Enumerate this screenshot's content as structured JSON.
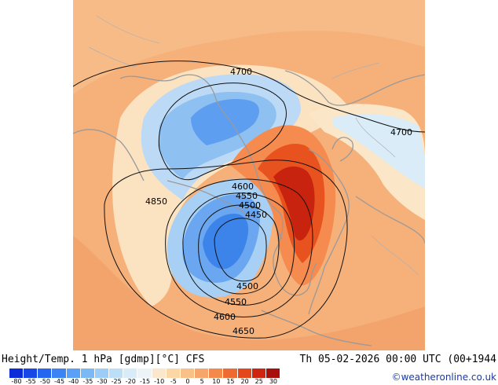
{
  "header": {
    "title": "Height/Temp. 1 hPa [gdmp][°C] CFS",
    "valid_time": "Th 05-02-2026 00:00 UTC (00+1944"
  },
  "contour_labels": [
    "4700",
    "4700",
    "4850",
    "4600",
    "4550",
    "4500",
    "4450",
    "4500",
    "4550",
    "4600",
    "4650"
  ],
  "colorbar": {
    "ticks": [
      "-80",
      "-55",
      "-50",
      "-45",
      "-40",
      "-35",
      "-30",
      "-25",
      "-20",
      "-15",
      "-10",
      "-5",
      "0",
      "5",
      "10",
      "15",
      "20",
      "25",
      "30"
    ],
    "colors": [
      "#0b2bd8",
      "#1747e6",
      "#2566f0",
      "#3a84f4",
      "#5aa0f6",
      "#7bb8f6",
      "#9dcdf6",
      "#bcdff7",
      "#d7ecf8",
      "#ecf4f8",
      "#fbe8cc",
      "#fbd7a6",
      "#f9c088",
      "#f6a66a",
      "#f38a4c",
      "#ef6a30",
      "#e4471c",
      "#cf2410",
      "#a80f0a"
    ],
    "tick_note": "colorbar lists the shown tick values"
  },
  "credit": "©weatheronline.co.uk"
}
